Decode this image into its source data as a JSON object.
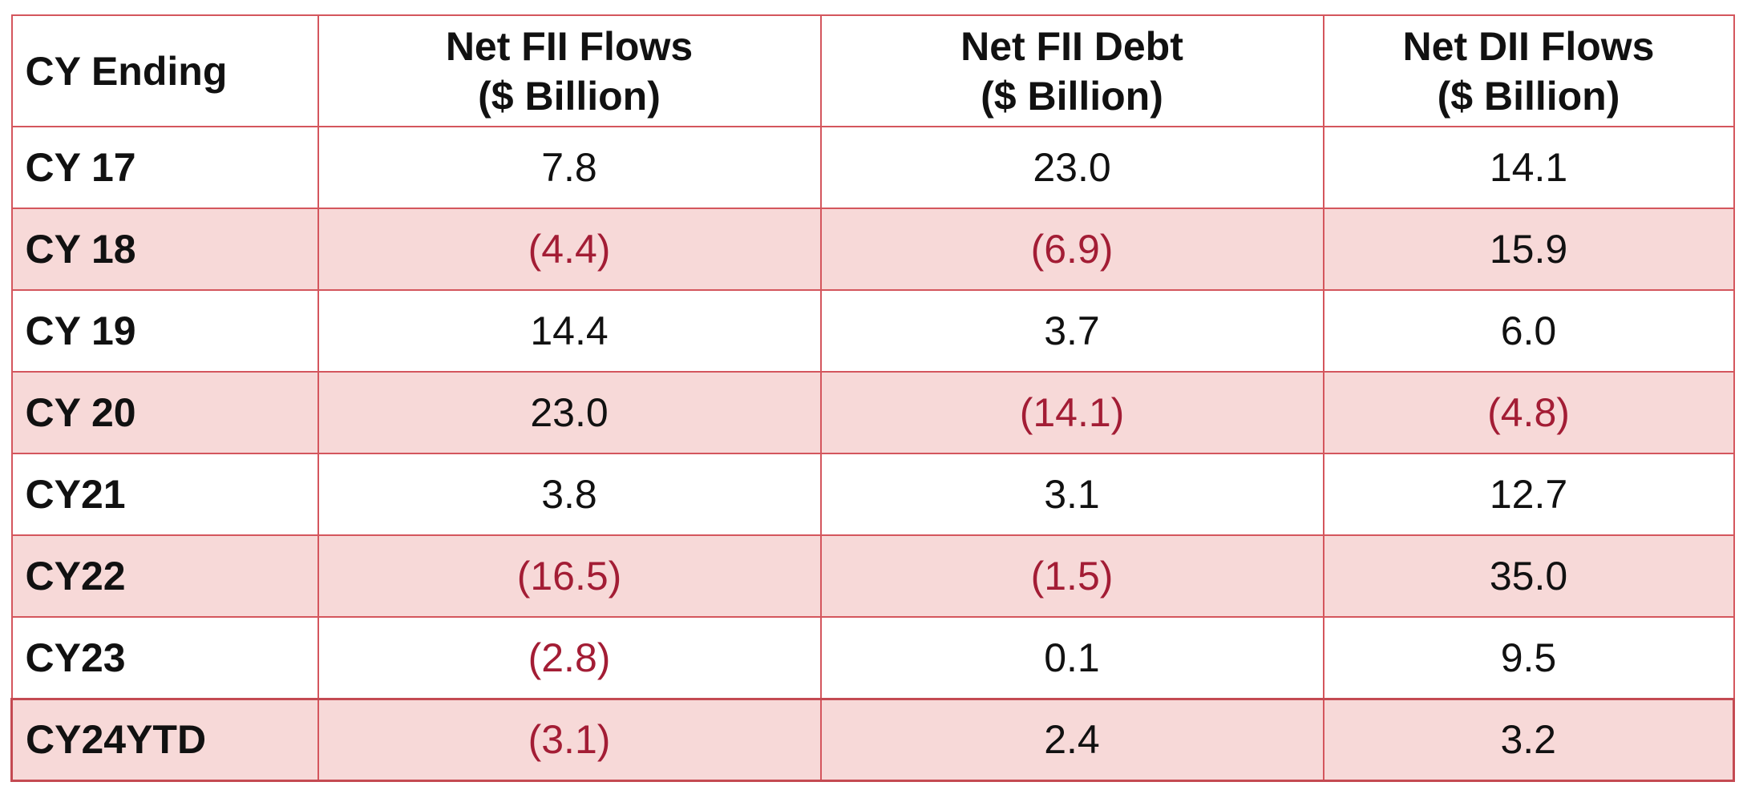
{
  "colors": {
    "border": "#d4565d",
    "shade": "#f7d9d8",
    "negative_text": "#a31d35",
    "text": "#111111"
  },
  "chart_data": {
    "type": "table",
    "columns": [
      {
        "line1": "CY Ending",
        "line2": ""
      },
      {
        "line1": "Net FII Flows",
        "line2": "($ Billion)"
      },
      {
        "line1": "Net FII Debt",
        "line2": "($ Billion)"
      },
      {
        "line1": "Net DII Flows",
        "line2": "($ Billion)"
      }
    ],
    "rows": [
      {
        "year": "CY 17",
        "cells": [
          {
            "text": "7.8",
            "value": 7.8
          },
          {
            "text": "23.0",
            "value": 23.0
          },
          {
            "text": "14.1",
            "value": 14.1
          }
        ]
      },
      {
        "year": "CY 18",
        "cells": [
          {
            "text": "(4.4)",
            "value": -4.4
          },
          {
            "text": "(6.9)",
            "value": -6.9
          },
          {
            "text": "15.9",
            "value": 15.9
          }
        ]
      },
      {
        "year": "CY 19",
        "cells": [
          {
            "text": "14.4",
            "value": 14.4
          },
          {
            "text": "3.7",
            "value": 3.7
          },
          {
            "text": "6.0",
            "value": 6.0
          }
        ]
      },
      {
        "year": "CY 20",
        "cells": [
          {
            "text": "23.0",
            "value": 23.0
          },
          {
            "text": "(14.1)",
            "value": -14.1
          },
          {
            "text": "(4.8)",
            "value": -4.8
          }
        ]
      },
      {
        "year": "CY21",
        "cells": [
          {
            "text": "3.8",
            "value": 3.8
          },
          {
            "text": "3.1",
            "value": 3.1
          },
          {
            "text": "12.7",
            "value": 12.7
          }
        ]
      },
      {
        "year": "CY22",
        "cells": [
          {
            "text": "(16.5)",
            "value": -16.5
          },
          {
            "text": "(1.5)",
            "value": -1.5
          },
          {
            "text": "35.0",
            "value": 35.0
          }
        ]
      },
      {
        "year": "CY23",
        "cells": [
          {
            "text": "(2.8)",
            "value": -2.8
          },
          {
            "text": "0.1",
            "value": 0.1
          },
          {
            "text": "9.5",
            "value": 9.5
          }
        ]
      },
      {
        "year": "CY24YTD",
        "cells": [
          {
            "text": "(3.1)",
            "value": -3.1
          },
          {
            "text": "2.4",
            "value": 2.4
          },
          {
            "text": "3.2",
            "value": 3.2
          }
        ]
      }
    ]
  }
}
